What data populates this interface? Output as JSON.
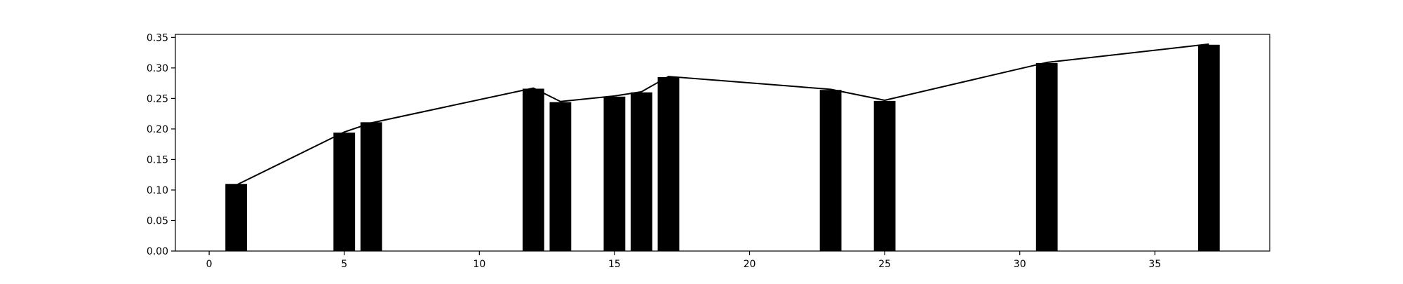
{
  "chart_data": {
    "type": "bar",
    "title": "",
    "xlabel": "",
    "ylabel": "",
    "xlim": [
      -1.25,
      39.25
    ],
    "ylim": [
      0,
      0.355
    ],
    "xticks": [
      0,
      5,
      10,
      15,
      20,
      25,
      30,
      35
    ],
    "yticks": [
      0.0,
      0.05,
      0.1,
      0.15,
      0.2,
      0.25,
      0.3,
      0.35
    ],
    "ytick_labels": [
      "0.00",
      "0.05",
      "0.10",
      "0.15",
      "0.20",
      "0.25",
      "0.30",
      "0.35"
    ],
    "bar_width": 0.8,
    "grid": false,
    "legend": "none",
    "series": [
      {
        "type": "bar",
        "color": "#000000",
        "x": [
          1,
          5,
          6,
          12,
          13,
          15,
          16,
          17,
          23,
          25,
          31,
          37
        ],
        "values": [
          0.11,
          0.194,
          0.211,
          0.266,
          0.244,
          0.253,
          0.26,
          0.285,
          0.264,
          0.246,
          0.308,
          0.338
        ]
      },
      {
        "type": "line",
        "color": "#000000",
        "x": [
          1,
          5,
          6,
          12,
          13,
          15,
          16,
          17,
          23,
          25,
          31,
          37
        ],
        "values": [
          0.108,
          0.195,
          0.21,
          0.267,
          0.245,
          0.254,
          0.261,
          0.286,
          0.265,
          0.247,
          0.309,
          0.339
        ]
      }
    ]
  }
}
